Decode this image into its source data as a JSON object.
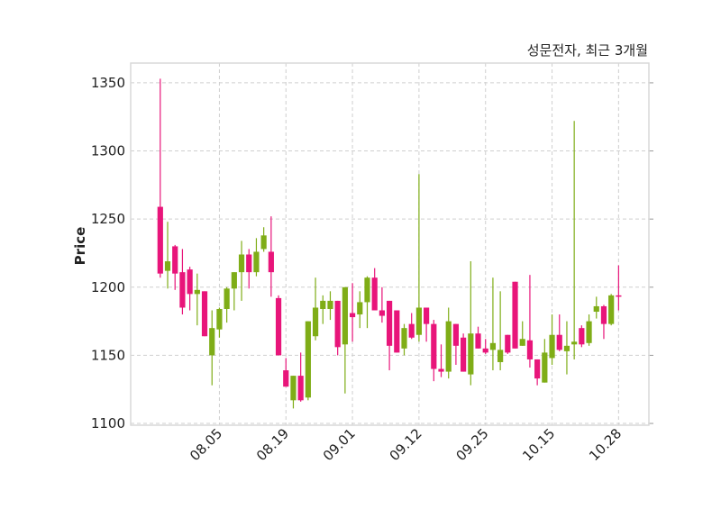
{
  "chart_data": {
    "type": "candlestick",
    "title": "성문전자, 최근 3개월",
    "ylabel": "Price",
    "xlabel": "",
    "ylim": [
      1098.7,
      1364.5
    ],
    "xlim": [
      -4,
      66.1
    ],
    "grid": true,
    "colors": {
      "up": "#7fad17",
      "down": "#e8157a",
      "grid": "#cfcfcf",
      "frame": "#d9d9d9"
    },
    "yticks": [
      1100,
      1150,
      1200,
      1250,
      1300,
      1350
    ],
    "xticks": [
      {
        "index": 8,
        "label": "08.05"
      },
      {
        "index": 17,
        "label": "08.19"
      },
      {
        "index": 26,
        "label": "09.01"
      },
      {
        "index": 35,
        "label": "09.12"
      },
      {
        "index": 44,
        "label": "09.25"
      },
      {
        "index": 53,
        "label": "10.15"
      },
      {
        "index": 62,
        "label": "10.28"
      }
    ],
    "ohlc": [
      [
        1259,
        1353,
        1207,
        1210
      ],
      [
        1212,
        1248,
        1199,
        1219
      ],
      [
        1230,
        1231,
        1198,
        1210
      ],
      [
        1211,
        1228,
        1180,
        1185
      ],
      [
        1213,
        1215,
        1183,
        1195
      ],
      [
        1195,
        1210,
        1172,
        1198
      ],
      [
        1197,
        1197,
        1164,
        1164
      ],
      [
        1150,
        1183,
        1128,
        1170
      ],
      [
        1169,
        1185,
        1163,
        1184
      ],
      [
        1184,
        1200,
        1174,
        1199
      ],
      [
        1199,
        1211,
        1183,
        1211
      ],
      [
        1211,
        1234,
        1190,
        1224
      ],
      [
        1224,
        1228,
        1199,
        1211
      ],
      [
        1211,
        1236,
        1208,
        1226
      ],
      [
        1228,
        1244,
        1226,
        1238
      ],
      [
        1226,
        1252,
        1193,
        1211
      ],
      [
        1192,
        1194,
        1150,
        1150
      ],
      [
        1139,
        1148,
        1127,
        1127
      ],
      [
        1117,
        1135,
        1111,
        1135
      ],
      [
        1135,
        1152,
        1116,
        1117
      ],
      [
        1119,
        1175,
        1117,
        1175
      ],
      [
        1164,
        1207,
        1161,
        1185
      ],
      [
        1184,
        1194,
        1173,
        1190
      ],
      [
        1184,
        1197,
        1176,
        1190
      ],
      [
        1190,
        1190,
        1150,
        1156
      ],
      [
        1158,
        1200,
        1122,
        1200
      ],
      [
        1181,
        1203,
        1160,
        1178
      ],
      [
        1180,
        1197,
        1170,
        1189
      ],
      [
        1189,
        1208,
        1170,
        1207
      ],
      [
        1207,
        1214,
        1183,
        1183
      ],
      [
        1183,
        1200,
        1174,
        1179
      ],
      [
        1190,
        1190,
        1139,
        1157
      ],
      [
        1183,
        1183,
        1152,
        1152
      ],
      [
        1155,
        1173,
        1150,
        1170
      ],
      [
        1173,
        1181,
        1162,
        1163
      ],
      [
        1165,
        1283,
        1160,
        1185
      ],
      [
        1185,
        1185,
        1160,
        1173
      ],
      [
        1173,
        1176,
        1131,
        1140
      ],
      [
        1140,
        1158,
        1134,
        1138
      ],
      [
        1138,
        1185,
        1133,
        1175
      ],
      [
        1173,
        1173,
        1143,
        1157
      ],
      [
        1163,
        1166,
        1138,
        1138
      ],
      [
        1136,
        1219,
        1128,
        1166
      ],
      [
        1166,
        1171,
        1155,
        1155
      ],
      [
        1155,
        1162,
        1151,
        1152
      ],
      [
        1154,
        1207,
        1139,
        1159
      ],
      [
        1145,
        1197,
        1139,
        1154
      ],
      [
        1165,
        1165,
        1151,
        1152
      ],
      [
        1204,
        1204,
        1155,
        1155
      ],
      [
        1157,
        1175,
        1157,
        1162
      ],
      [
        1161,
        1209,
        1141,
        1147
      ],
      [
        1147,
        1147,
        1128,
        1133
      ],
      [
        1130,
        1162,
        1130,
        1152
      ],
      [
        1148,
        1180,
        1143,
        1165
      ],
      [
        1165,
        1180,
        1153,
        1154
      ],
      [
        1153,
        1175,
        1136,
        1157
      ],
      [
        1158,
        1322,
        1147,
        1160
      ],
      [
        1170,
        1172,
        1156,
        1158
      ],
      [
        1159,
        1180,
        1157,
        1175
      ],
      [
        1182,
        1193,
        1177,
        1186
      ],
      [
        1186,
        1187,
        1162,
        1173
      ],
      [
        1173,
        1195,
        1172,
        1194
      ],
      [
        1194,
        1216,
        1183,
        1193
      ]
    ]
  }
}
